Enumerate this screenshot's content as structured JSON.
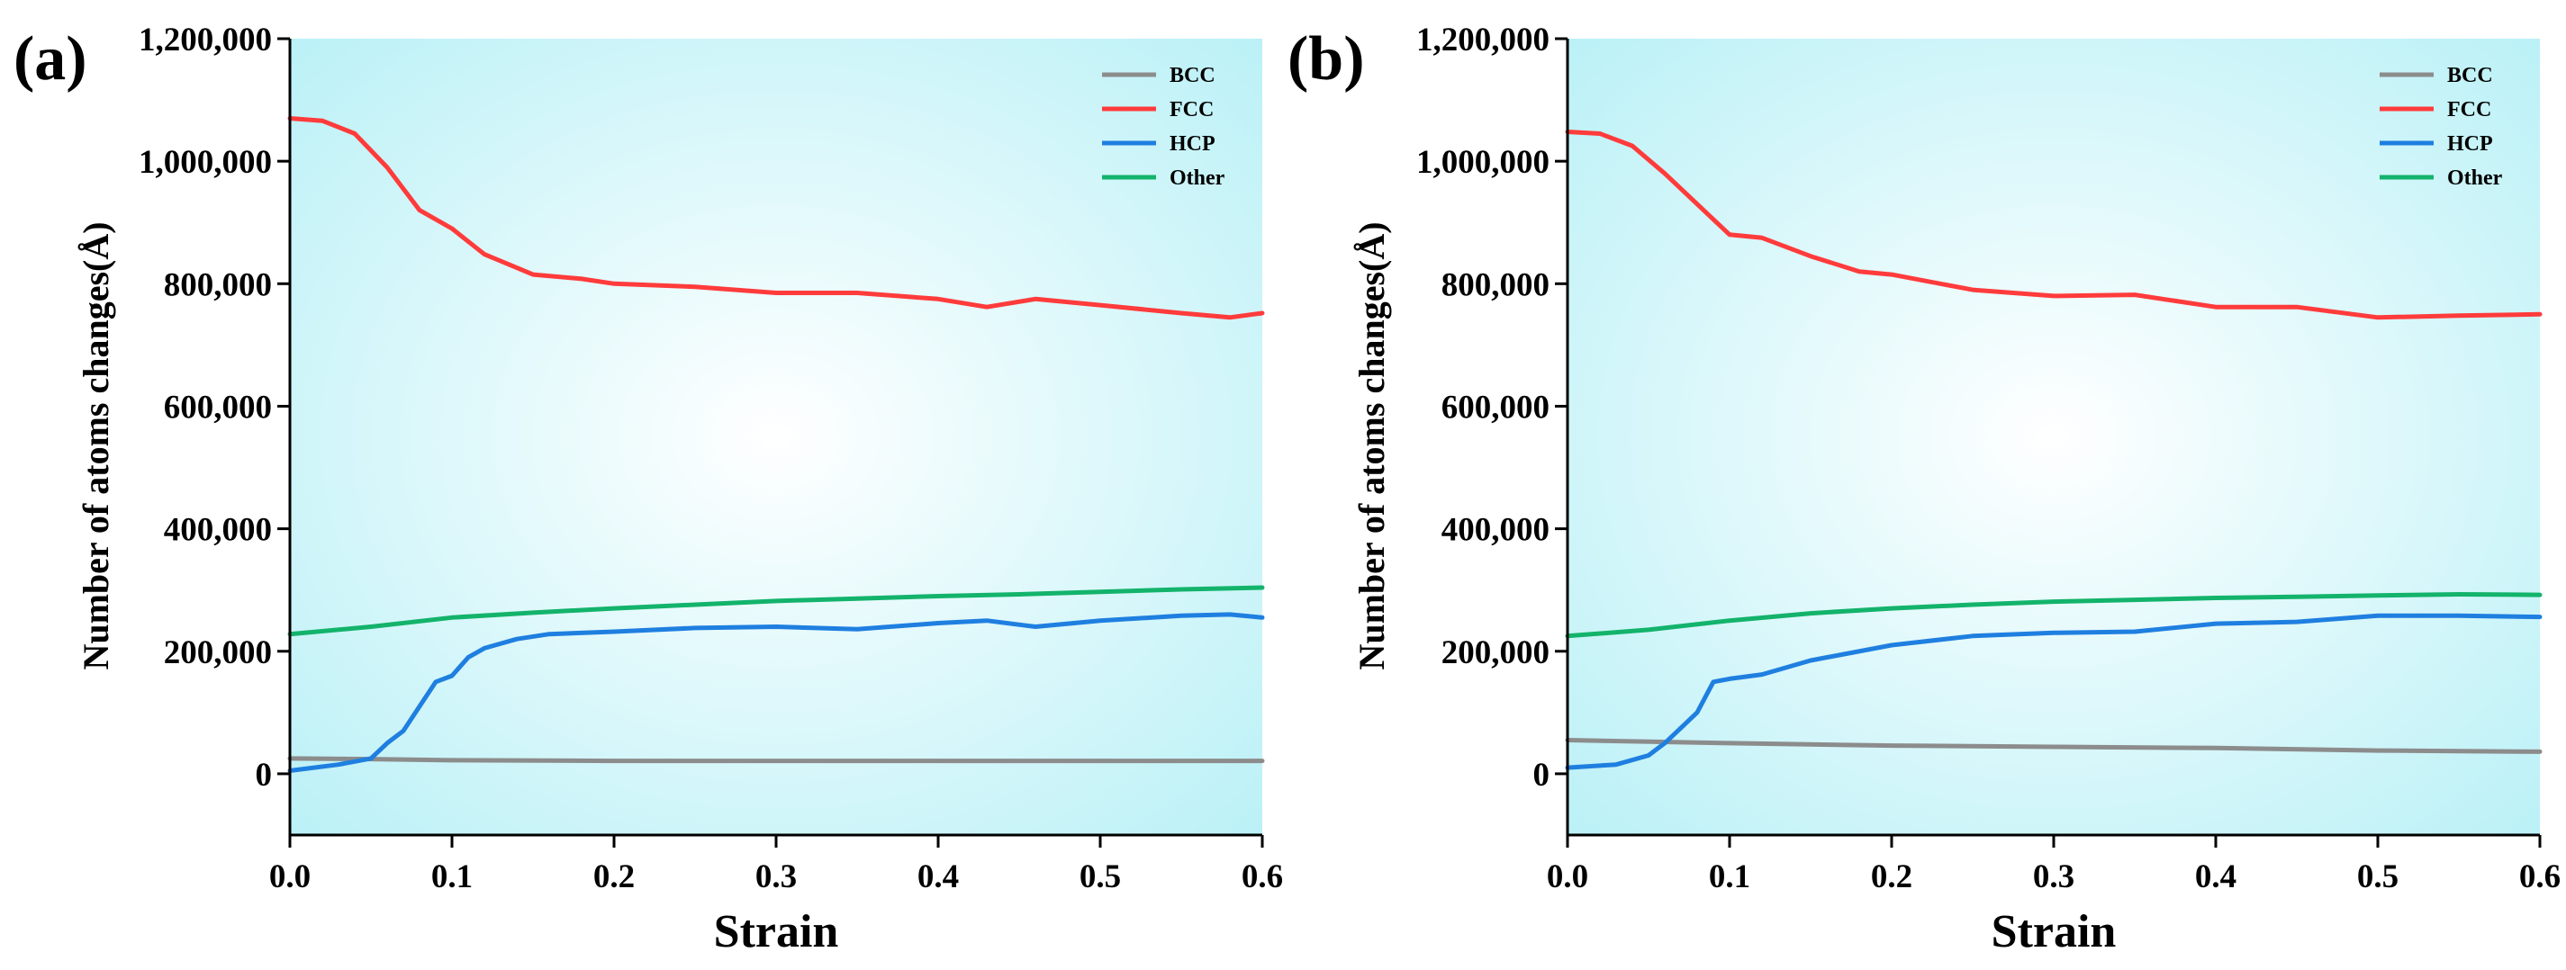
{
  "figure": {
    "panels": [
      "(a)",
      "(b)"
    ]
  },
  "colors": {
    "BCC": "#8c8c8c",
    "FCC": "#ff3b3b",
    "HCP": "#1f7fe0",
    "Other": "#13b36b",
    "bg_center": "#ffffff",
    "bg_edge": "#b6f0f6"
  },
  "chart_data": [
    {
      "type": "line",
      "panel_label": "(a)",
      "xlabel": "Strain",
      "ylabel": "Number of atoms changes(Å)",
      "xlim": [
        0,
        0.6
      ],
      "ylim": [
        -100000,
        1200000
      ],
      "x_ticks": [
        0.0,
        0.1,
        0.2,
        0.3,
        0.4,
        0.5,
        0.6
      ],
      "x_tick_labels": [
        "0.0",
        "0.1",
        "0.2",
        "0.3",
        "0.4",
        "0.5",
        "0.6"
      ],
      "y_ticks": [
        0,
        200000,
        400000,
        600000,
        800000,
        1000000,
        1200000
      ],
      "y_tick_labels": [
        "0",
        "200,000",
        "400,000",
        "600,000",
        "800,000",
        "1,000,000",
        "1,200,000"
      ],
      "legend": [
        "BCC",
        "FCC",
        "HCP",
        "Other"
      ],
      "legend_position": "top-right",
      "series": [
        {
          "name": "BCC",
          "x": [
            0,
            0.05,
            0.1,
            0.2,
            0.3,
            0.4,
            0.5,
            0.6
          ],
          "y": [
            25000,
            24000,
            22000,
            21000,
            21000,
            21000,
            21000,
            21000
          ]
        },
        {
          "name": "FCC",
          "x": [
            0,
            0.02,
            0.04,
            0.06,
            0.08,
            0.1,
            0.12,
            0.15,
            0.18,
            0.2,
            0.25,
            0.3,
            0.35,
            0.4,
            0.43,
            0.46,
            0.5,
            0.55,
            0.58,
            0.6
          ],
          "y": [
            1070000,
            1066000,
            1045000,
            990000,
            920000,
            890000,
            848000,
            815000,
            808000,
            800000,
            795000,
            785000,
            785000,
            775000,
            762000,
            775000,
            765000,
            752000,
            745000,
            752000
          ]
        },
        {
          "name": "HCP",
          "x": [
            0,
            0.03,
            0.05,
            0.06,
            0.07,
            0.08,
            0.09,
            0.1,
            0.11,
            0.12,
            0.14,
            0.16,
            0.2,
            0.25,
            0.3,
            0.35,
            0.4,
            0.43,
            0.46,
            0.5,
            0.55,
            0.58,
            0.6
          ],
          "y": [
            5000,
            15000,
            25000,
            50000,
            70000,
            110000,
            150000,
            160000,
            190000,
            205000,
            220000,
            228000,
            232000,
            238000,
            240000,
            236000,
            246000,
            250000,
            240000,
            250000,
            258000,
            260000,
            255000
          ]
        },
        {
          "name": "Other",
          "x": [
            0,
            0.05,
            0.1,
            0.15,
            0.2,
            0.25,
            0.3,
            0.35,
            0.4,
            0.45,
            0.5,
            0.55,
            0.6
          ],
          "y": [
            228000,
            240000,
            255000,
            263000,
            270000,
            276000,
            282000,
            286000,
            290000,
            293000,
            297000,
            301000,
            304000
          ]
        }
      ]
    },
    {
      "type": "line",
      "panel_label": "(b)",
      "xlabel": "Strain",
      "ylabel": "Number of atoms changes(Å)",
      "xlim": [
        0,
        0.6
      ],
      "ylim": [
        -100000,
        1200000
      ],
      "x_ticks": [
        0.0,
        0.1,
        0.2,
        0.3,
        0.4,
        0.5,
        0.6
      ],
      "x_tick_labels": [
        "0.0",
        "0.1",
        "0.2",
        "0.3",
        "0.4",
        "0.5",
        "0.6"
      ],
      "y_ticks": [
        0,
        200000,
        400000,
        600000,
        800000,
        1000000,
        1200000
      ],
      "y_tick_labels": [
        "0",
        "200,000",
        "400,000",
        "600,000",
        "800,000",
        "1,000,000",
        "1,200,000"
      ],
      "legend": [
        "BCC",
        "FCC",
        "HCP",
        "Other"
      ],
      "legend_position": "top-right",
      "series": [
        {
          "name": "BCC",
          "x": [
            0,
            0.1,
            0.2,
            0.3,
            0.4,
            0.5,
            0.6
          ],
          "y": [
            55000,
            50000,
            46000,
            44000,
            42000,
            38000,
            36000
          ]
        },
        {
          "name": "FCC",
          "x": [
            0,
            0.02,
            0.04,
            0.06,
            0.08,
            0.1,
            0.12,
            0.15,
            0.18,
            0.2,
            0.25,
            0.3,
            0.35,
            0.4,
            0.45,
            0.5,
            0.55,
            0.6
          ],
          "y": [
            1048000,
            1045000,
            1025000,
            980000,
            930000,
            880000,
            875000,
            845000,
            820000,
            815000,
            790000,
            780000,
            782000,
            762000,
            762000,
            745000,
            748000,
            750000
          ]
        },
        {
          "name": "HCP",
          "x": [
            0,
            0.03,
            0.05,
            0.06,
            0.07,
            0.08,
            0.09,
            0.1,
            0.12,
            0.15,
            0.2,
            0.25,
            0.3,
            0.35,
            0.4,
            0.45,
            0.5,
            0.55,
            0.6
          ],
          "y": [
            10000,
            15000,
            30000,
            50000,
            75000,
            100000,
            150000,
            155000,
            162000,
            185000,
            210000,
            225000,
            230000,
            232000,
            245000,
            248000,
            258000,
            258000,
            256000
          ]
        },
        {
          "name": "Other",
          "x": [
            0,
            0.05,
            0.1,
            0.15,
            0.2,
            0.25,
            0.3,
            0.35,
            0.4,
            0.45,
            0.5,
            0.55,
            0.6
          ],
          "y": [
            225000,
            235000,
            250000,
            262000,
            270000,
            276000,
            281000,
            284000,
            287000,
            289000,
            291000,
            293000,
            292000
          ]
        }
      ]
    }
  ]
}
